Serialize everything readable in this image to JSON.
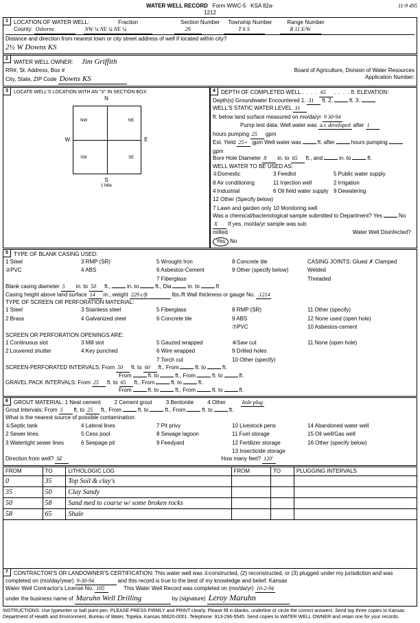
{
  "header": {
    "title": "WATER WELL RECORD",
    "form": "Form WWC-5",
    "ksa": "KSA 82a-1212",
    "date_top": "11-9 495"
  },
  "loc": {
    "county_label": "County:",
    "county": "Osborne",
    "fraction_label": "Fraction",
    "fraction": "NW ¼  NE ¼  NE ¼",
    "section_label": "Section Number",
    "section": "29",
    "township_label": "Township Number",
    "township": "T  6  S",
    "range_label": "Range Number",
    "range": "R  11  E/W",
    "dist_label": "Distance and direction from nearest town or city street address of well if located within city?",
    "dist": "2½ W Downs  KS"
  },
  "owner": {
    "label": "WATER WELL OWNER:",
    "name": "Jim Griffith",
    "addr_label": "RR#, St. Address, Box #",
    "city_label": "City, State, ZIP Code",
    "city": "Downs  KS",
    "board": "Board of Agriculture, Division of Water Resources",
    "app_label": "Application Number:"
  },
  "section3": {
    "title": "LOCATE WELL'S LOCATION WITH AN \"X\" IN SECTION BOX:",
    "n": "N",
    "s": "S",
    "e": "E",
    "w": "W",
    "nw": "NW",
    "ne": "NE",
    "sw": "SW",
    "se": "SE",
    "mile": "1 Mile"
  },
  "section4": {
    "depth_label": "DEPTH OF COMPLETED WELL",
    "depth": "65",
    "elev_label": "ft. ELEVATION:",
    "gw_label": "Depth(s) Groundwater Encountered",
    "gw1": "1.",
    "gw1v": "31",
    "gw2": "ft. 2.",
    "gw3": "ft. 3.",
    "static_label": "WELL'S STATIC WATER LEVEL",
    "static": "31",
    "static_tail": "ft. below land surface measured on mo/da/yr",
    "static_date": "9 30-94",
    "pump_label": "Pump test data:  Well water was",
    "pump_note": "a.r. developed",
    "pump_after": "after",
    "pump_hours": "1",
    "pump_hours_tail": "hours pumping",
    "pump_gpm": "25",
    "gpm": "gpm",
    "est_label": "Est. Yield",
    "est": "25+",
    "est_tail": "gpm  Well water was",
    "est_after": "ft. after",
    "est_hours_tail": "hours pumping",
    "bore_label": "Bore Hole Diameter",
    "bore": "8",
    "bore_in": "in. to",
    "bore_to": "65",
    "bore_tail": "ft., and",
    "bore_in2": "in. to",
    "bore_ft2": "ft.",
    "use_label": "WELL WATER TO BE USED AS:",
    "uses": [
      "①Domestic",
      "3 Feedlot",
      "5 Public water supply",
      "8 Air conditioning",
      "11 Injection well",
      "2 Irrigation",
      "4 Industrial",
      "6 Oil field water supply",
      "9 Dewatering",
      "12 Other (Specify below)",
      "",
      "",
      "7 Lawn and garden only",
      "10 Monitoring well",
      ""
    ],
    "chem_label": "Was a chemical/bacteriological sample submitted to Department? Yes",
    "chem_no": "No",
    "chem_x": "X",
    "chem_tail": "If yes, mo/da/yr sample was sub",
    "mitted": "mitted",
    "disinf_label": "Water Well Disinfected?",
    "disinf_yes": "Yes",
    "disinf_no": "No"
  },
  "section5": {
    "title": "TYPE OF BLANK CASING USED:",
    "opts": [
      "1  Steel",
      "3 RMP (SR)",
      "5  Wrought Iron",
      "8  Concrete tile",
      "CASING JOINTS:  Glued  ✗  Clamped",
      "②PVC",
      "4  ABS",
      "6  Asbestos-Cement",
      "9  Other (specify below)",
      "Welded",
      "",
      "",
      "7  Fiberglass",
      "",
      "Threaded"
    ],
    "blank_dia_label": "Blank casing diameter",
    "blank_dia": "5",
    "blank_in": "in. to",
    "blank_to": "50",
    "blank_tail": "ft.,",
    "blank_in2": "in. to",
    "blank_ft2": "ft., Dia",
    "blank_in3": "in. to",
    "blank_ft3": "ft",
    "height_label": "Casing height above land surface",
    "height": "14",
    "height_in": "in., weight",
    "weight": "229 c/ft",
    "weight_tail": "lbs./ft  Wall thickness or gauge No.",
    "gauge": ".1214",
    "screen_title": "TYPE OF SCREEN OR PERFORATION MATERIAL:",
    "screen_opts": [
      "1  Steel",
      "3  Stainless steel",
      "5  Fiberglass",
      "8  RMP (SR)",
      "11  Other (specify)",
      "2  Brass",
      "4  Galvanized steel",
      "6  Concrete tile",
      "9  ABS",
      "12  None used (open hole)",
      "",
      "",
      "",
      "⑦PVC",
      "10  Asbestos-cement"
    ],
    "open_title": "SCREEN OR PERFORATION OPENINGS ARE:",
    "open_opts": [
      "1  Continuous slot",
      "3  Mill slot",
      "5 Gauzed wrapped",
      "⑧Saw cut",
      "11  None (open hole)",
      "2  Louvered shutter",
      "4  Key punched",
      "6  Wire wrapped",
      "9  Drilled holes",
      "",
      "",
      "",
      "7  Torch cut",
      "10  Other (specify)",
      ""
    ],
    "perf_label": "SCREEN-PERFORATED INTERVALS:    From",
    "perf_from": "50",
    "perf_to_l": "ft. to",
    "perf_to": "60",
    "perf_tail": "ft., From",
    "perf_tail2": "ft. to",
    "perf_tail3": "ft.",
    "perf2_label": "From",
    "perf2_tail": "ft. to",
    "perf2_tail2": "ft., From",
    "perf2_tail3": "ft. to",
    "perf2_tail4": "ft.",
    "gravel_label": "GRAVEL PACK INTERVALS:    From",
    "gravel_from": "25",
    "gravel_to_l": "ft. to",
    "gravel_to": "65",
    "gravel_tail": "ft., From",
    "gravel_tail2": "ft. to",
    "gravel_tail3": "ft.",
    "gravel2_label": "From",
    "gravel2_tail": "ft. to",
    "gravel2_tail2": "ft., From",
    "gravel2_tail3": "ft. to",
    "gravel2_tail4": "ft."
  },
  "section6": {
    "title": "GROUT MATERIAL:",
    "opts": [
      "1 Neat cement",
      "2 Cement grout",
      "3 Bentonite",
      "4 Other"
    ],
    "other": "hole plug",
    "interval_label": "Grout Intervals:    From",
    "int_from": "5",
    "int_to_l": "ft. to",
    "int_to": "25",
    "int_tail": "ft., From",
    "int_tail2": "ft. to",
    "int_tail3": "ft., From",
    "int_tail4": "ft. to",
    "int_tail5": "ft.",
    "contam_label": "What is the nearest source of possible contamination:",
    "contam_opts": [
      "①Septic tank",
      "4  Lateral lines",
      "7  Pit privy",
      "10  Livestock pens",
      "14  Abandoned water well",
      "2  Sewer lines",
      "5  Cess pool",
      "8  Sewage lagoon",
      "11  Fuel storage",
      "15  Oil well/Gas well",
      "3  Watertight sewer lines",
      "6 Seepage pit",
      "9  Feedyard",
      "12  Fertilizer storage",
      "16  Other (specify below)",
      "",
      "",
      "",
      "13  Insecticide storage",
      ""
    ],
    "dir_label": "Direction from well?",
    "dir": "SE",
    "howmany_label": "How many feet?",
    "howmany": "120'"
  },
  "log": {
    "headers": [
      "FROM",
      "TO",
      "LITHOLOGIC LOG",
      "FROM",
      "TO",
      "PLUGGING INTERVALS"
    ],
    "rows": [
      {
        "from": "0",
        "to": "35",
        "desc": "Top Soil & clay's"
      },
      {
        "from": "35",
        "to": "50",
        "desc": "Clay Sandy"
      },
      {
        "from": "50",
        "to": "58",
        "desc": "Sand med to coarse w/ some broken rocks"
      },
      {
        "from": "58",
        "to": "65",
        "desc": "Shale"
      }
    ]
  },
  "section7": {
    "cert": "CONTRACTOR'S OR LANDOWNER'S CERTIFICATION:  This water well was ①constructed, (2) reconstructed, or (3) plugged under my jurisdiction and was",
    "completed_label": "completed on (mo/day/year)",
    "completed": "9-30-94",
    "cert_tail": "and this record is true to the best of my knowledge and belief. Kansas",
    "lic_label": "Water Well Contractor's License No.",
    "lic": "105",
    "rec_label": "This Water Well Record was completed on (mo/da/yr)",
    "rec_date": "10-2-94",
    "bus_label": "under the business name of",
    "bus": "Maruhn Well Drilling",
    "sig_label": "by (signature)",
    "sig": "Leroy Maruhn"
  },
  "footer": "INSTRUCTIONS: Use typewriter or ball point pen. PLEASE PRESS FIRMLY and PRINT clearly. Please fill in blanks, underline or circle the correct answers. Send top three copies to Kansas Department of Health and Environment, Bureau of Water, Topeka, Kansas 66620-0001. Telephone: 913-296-5545. Send copies to WATER WELL OWNER and retain one for your records."
}
